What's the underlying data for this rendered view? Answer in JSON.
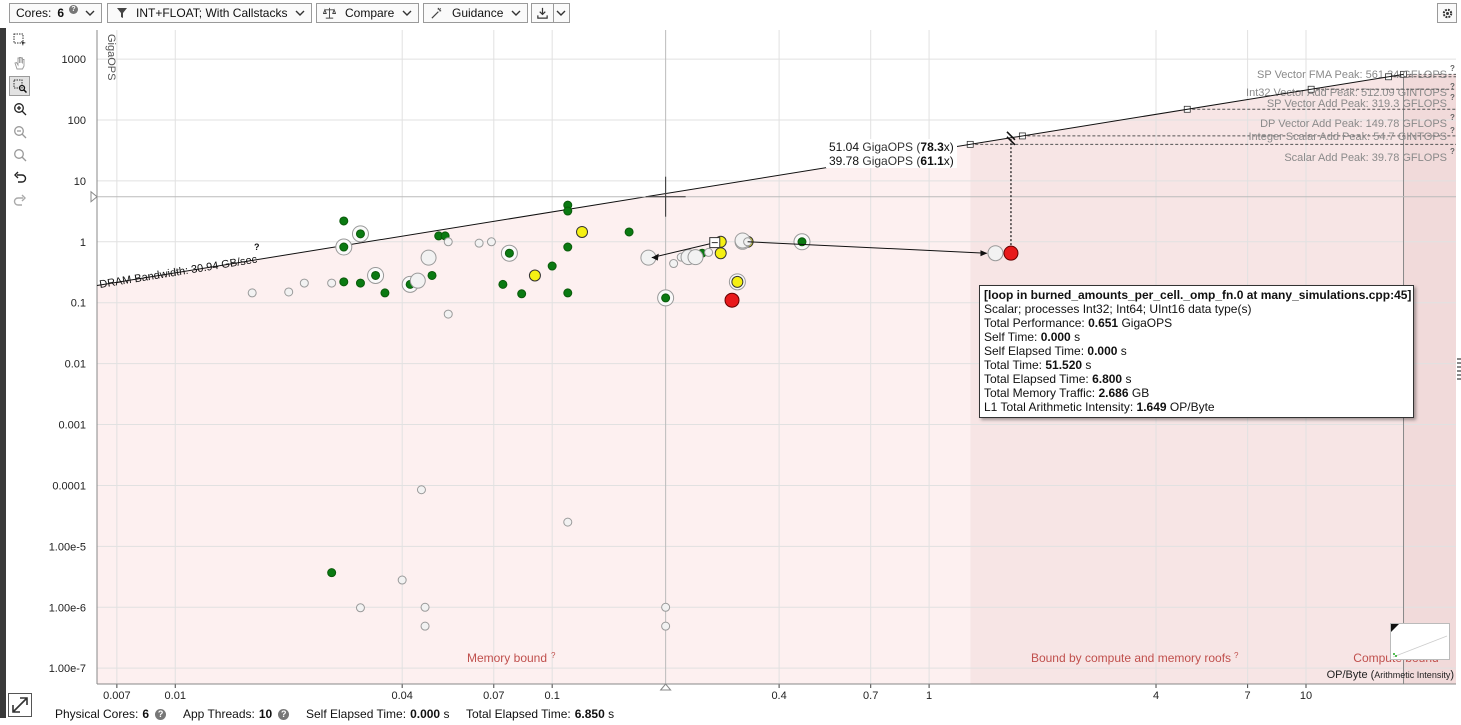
{
  "toolbar": {
    "cores_label": "Cores:",
    "cores_value": "6",
    "filter_label": "INT+FLOAT; With Callstacks",
    "compare_label": "Compare",
    "guidance_label": "Guidance"
  },
  "tools": [
    {
      "name": "select-tool",
      "icon": "select-icon",
      "active": false
    },
    {
      "name": "pan-tool",
      "icon": "hand-icon",
      "active": false
    },
    {
      "name": "zoom-select-tool",
      "icon": "zoom-rect-icon",
      "active": true
    },
    {
      "name": "zoom-in-tool",
      "icon": "zoom-in-icon",
      "active": false
    },
    {
      "name": "zoom-out-tool",
      "icon": "zoom-out-icon",
      "active": false
    },
    {
      "name": "zoom-fit-tool",
      "icon": "zoom-fit-icon",
      "active": false
    },
    {
      "name": "undo-tool",
      "icon": "undo-icon",
      "active": false
    },
    {
      "name": "redo-tool",
      "icon": "redo-icon",
      "active": false
    }
  ],
  "chart_data": {
    "type": "scatter",
    "ylabel": "GigaOPS",
    "xlabel": "OP/Byte",
    "xlabel_detail": "Arithmetic Intensity",
    "xscale": "log",
    "yscale": "log",
    "xlim": [
      0.0062,
      25
    ],
    "ylim": [
      5.5e-08,
      3000
    ],
    "x_ticks": [
      "0.007",
      "0.01",
      "0.04",
      "0.07",
      "0.1",
      "0.4",
      "0.7",
      "1",
      "4",
      "7",
      "10"
    ],
    "y_ticks": [
      "1000",
      "100",
      "10",
      "1",
      "0.1",
      "0.01",
      "0.001",
      "0.0001",
      "1.00e-5",
      "1.00e-6",
      "1.00e-7"
    ],
    "y_tick_values": [
      1000,
      100,
      10,
      1,
      0.1,
      0.01,
      0.001,
      0.0001,
      1e-05,
      1e-06,
      1e-07
    ],
    "x_tick_values": [
      0.007,
      0.01,
      0.04,
      0.07,
      0.1,
      0.4,
      0.7,
      1,
      4,
      7,
      10
    ],
    "roofs": [
      {
        "label": "SP Vector FMA Peak: 561.34 GFLOPS",
        "gops": 561.34
      },
      {
        "label": "Int32 Vector Add Peak: 512.09 GINTOPS",
        "gops": 512.09
      },
      {
        "label": "SP Vector Add Peak: 319.3 GFLOPS",
        "gops": 319.3
      },
      {
        "label": "DP Vector Add Peak: 149.78 GFLOPS",
        "gops": 149.78
      },
      {
        "label": "Integer Scalar Add Peak: 54.7 GINTOPS",
        "gops": 54.7
      },
      {
        "label": "Scalar Add Peak: 39.78 GFLOPS",
        "gops": 39.78
      }
    ],
    "bandwidth": {
      "label": "DRAM Bandwidth: 30.94 GB/sec",
      "gb_per_sec": 30.94
    },
    "regions": {
      "memory": "Memory bound",
      "both": "Bound by compute and memory roofs",
      "compute": "Compute bound"
    },
    "projection": [
      {
        "value": "51.04",
        "unit": "GigaOPS",
        "speedup": "78.3"
      },
      {
        "value": "39.78",
        "unit": "GigaOPS",
        "speedup": "61.1"
      }
    ],
    "crosshair": {
      "x": 0.2,
      "y": 5.5
    },
    "series": [
      {
        "kind": "green",
        "points": [
          [
            0.028,
            2.2
          ],
          [
            0.031,
            1.35
          ],
          [
            0.028,
            0.82
          ],
          [
            0.034,
            0.28
          ],
          [
            0.05,
            1.25
          ],
          [
            0.052,
            1.25
          ],
          [
            0.11,
            4.0
          ],
          [
            0.11,
            3.2
          ],
          [
            0.16,
            1.45
          ],
          [
            0.028,
            0.22
          ],
          [
            0.031,
            0.21
          ],
          [
            0.036,
            0.145
          ],
          [
            0.042,
            0.2
          ],
          [
            0.048,
            0.28
          ],
          [
            0.074,
            0.2
          ],
          [
            0.077,
            0.65
          ],
          [
            0.083,
            0.14
          ],
          [
            0.1,
            0.4
          ],
          [
            0.11,
            0.82
          ],
          [
            0.11,
            0.145
          ],
          [
            0.2,
            0.12
          ],
          [
            0.25,
            0.65
          ],
          [
            0.46,
            1.0
          ],
          [
            0.026,
            3.7e-06
          ]
        ]
      },
      {
        "kind": "yellow",
        "points": [
          [
            0.12,
            1.45
          ],
          [
            0.09,
            0.28
          ],
          [
            0.28,
            1.0
          ],
          [
            0.28,
            0.65
          ],
          [
            0.33,
            1.0
          ],
          [
            0.31,
            0.22
          ]
        ]
      },
      {
        "kind": "red",
        "points": [
          [
            0.3,
            0.11
          ],
          [
            1.649,
            0.651
          ]
        ]
      },
      {
        "kind": "gray",
        "points": [
          [
            0.016,
            0.145
          ],
          [
            0.02,
            0.15
          ],
          [
            0.022,
            0.21
          ],
          [
            0.026,
            0.21
          ],
          [
            0.044,
            0.23
          ],
          [
            0.047,
            0.55
          ],
          [
            0.053,
            0.065
          ],
          [
            0.053,
            1.0
          ],
          [
            0.064,
            0.95
          ],
          [
            0.069,
            1.0
          ],
          [
            0.18,
            0.55
          ],
          [
            0.21,
            0.44
          ],
          [
            0.22,
            0.56
          ],
          [
            0.23,
            0.56
          ],
          [
            0.24,
            0.56
          ],
          [
            0.26,
            0.67
          ],
          [
            0.32,
            1.0
          ],
          [
            0.32,
            1.05
          ],
          [
            0.33,
            1.0
          ],
          [
            1.5,
            0.65
          ],
          [
            0.045,
            8.5e-05
          ],
          [
            0.11,
            2.5e-05
          ],
          [
            0.04,
            2.8e-06
          ],
          [
            0.031,
            9.8e-07
          ],
          [
            0.046,
            1e-06
          ],
          [
            0.046,
            4.9e-07
          ],
          [
            0.2,
            1e-06
          ],
          [
            0.2,
            4.9e-07
          ]
        ]
      }
    ]
  },
  "tooltip": {
    "title": "[loop in burned_amounts_per_cell._omp_fn.0 at many_simulations.cpp:45]",
    "desc": "Scalar; processes Int32; Int64; UInt16 data type(s)",
    "rows": [
      {
        "label": "Total Performance:",
        "value": "0.651",
        "unit": "GigaOPS"
      },
      {
        "label": "Self Time:",
        "value": "0.000",
        "unit": "s"
      },
      {
        "label": "Self Elapsed Time:",
        "value": "0.000",
        "unit": "s"
      },
      {
        "label": "Total Time:",
        "value": "51.520",
        "unit": "s"
      },
      {
        "label": "Total Elapsed Time:",
        "value": "6.800",
        "unit": "s"
      },
      {
        "label": "Total Memory Traffic:",
        "value": "2.686",
        "unit": "GB"
      },
      {
        "label": "L1 Total Arithmetic Intensity:",
        "value": "1.649",
        "unit": "OP/Byte"
      }
    ]
  },
  "status": {
    "physical_cores_label": "Physical Cores:",
    "physical_cores": "6",
    "app_threads_label": "App Threads:",
    "app_threads": "10",
    "self_elapsed_label": "Self Elapsed Time:",
    "self_elapsed": "0.000",
    "self_elapsed_unit": "s",
    "total_elapsed_label": "Total Elapsed Time:",
    "total_elapsed": "6.850",
    "total_elapsed_unit": "s"
  }
}
